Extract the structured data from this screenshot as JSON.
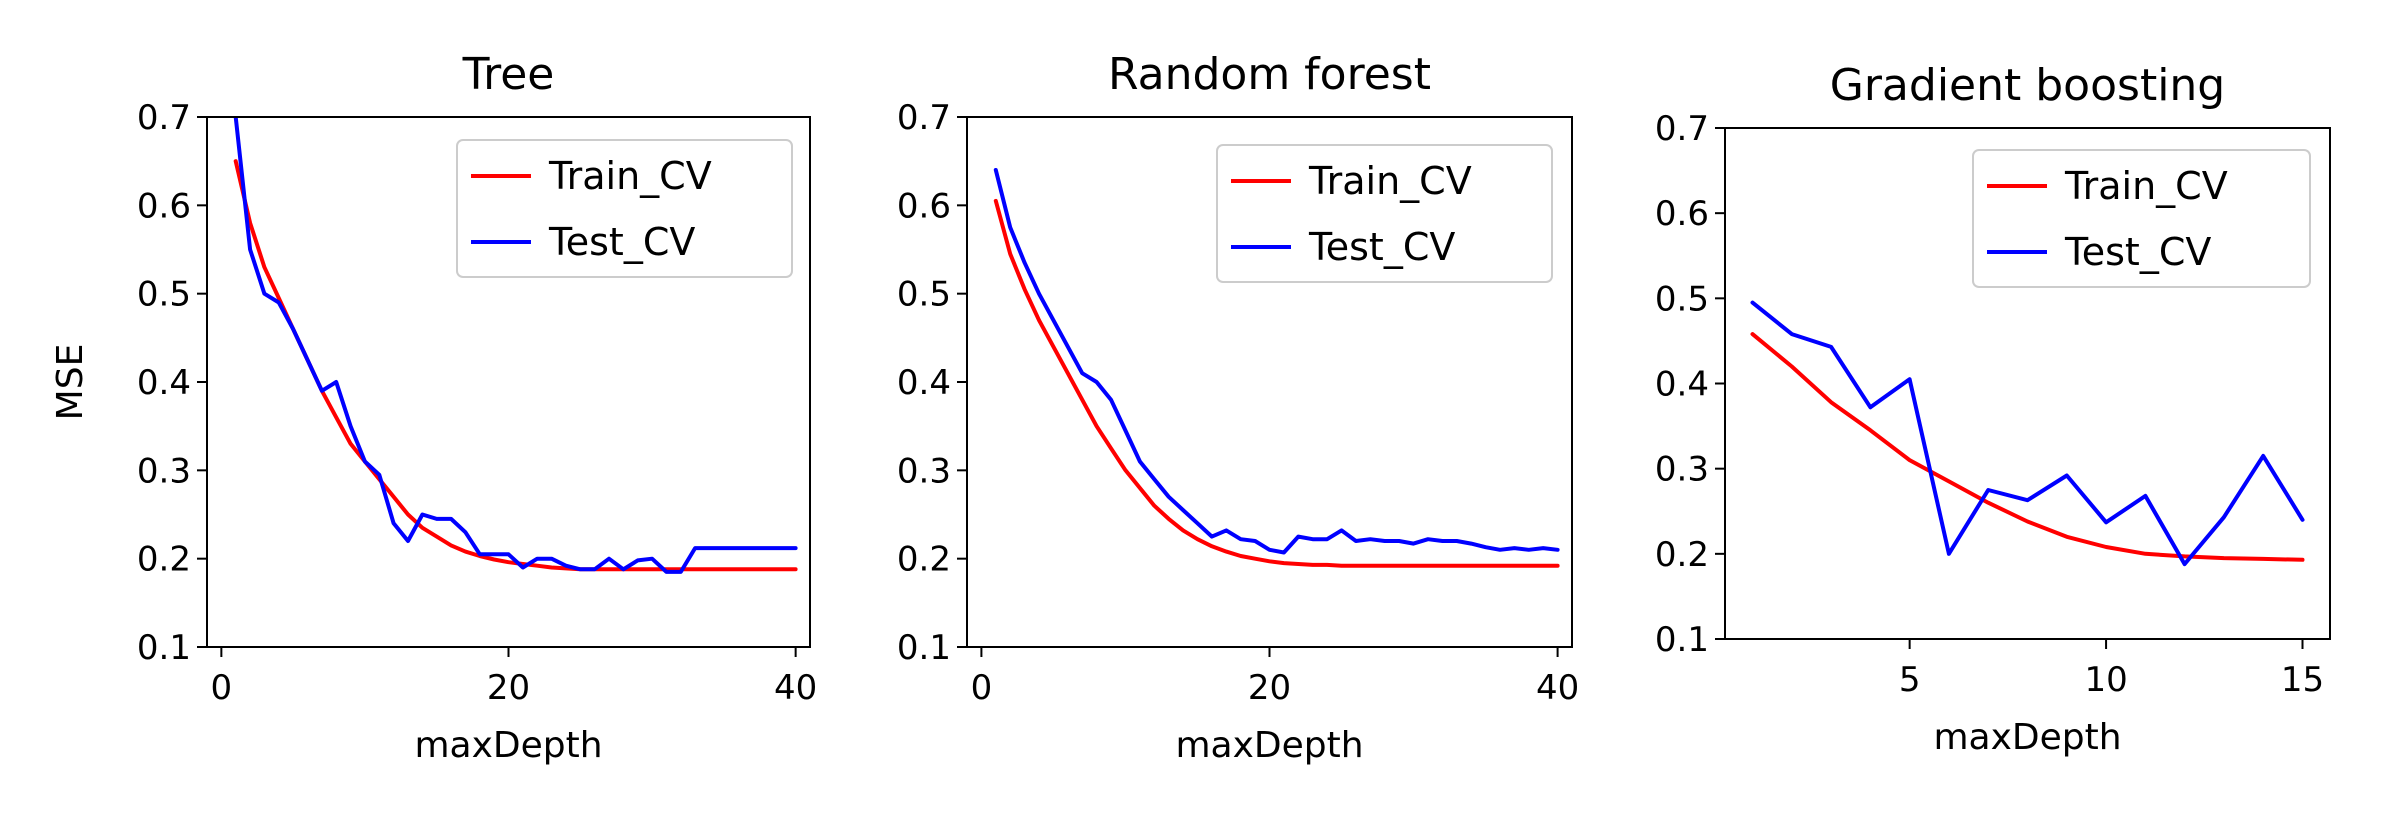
{
  "chart_data": [
    {
      "type": "line",
      "title": "Tree",
      "xlabel": "maxDepth",
      "ylabel": "MSE",
      "xlim": [
        -1,
        41
      ],
      "ylim": [
        0.1,
        0.7
      ],
      "xticks": [
        0,
        20,
        40
      ],
      "yticks": [
        0.1,
        0.2,
        0.3,
        0.4,
        0.5,
        0.6,
        0.7
      ],
      "legend": "top-right",
      "series": [
        {
          "name": "Train_CV",
          "color": "#ff0000",
          "x": [
            1,
            2,
            3,
            4,
            5,
            6,
            7,
            8,
            9,
            10,
            11,
            12,
            13,
            14,
            15,
            16,
            17,
            18,
            19,
            20,
            21,
            22,
            23,
            24,
            25,
            26,
            27,
            28,
            29,
            30,
            31,
            32,
            33,
            34,
            35,
            36,
            37,
            38,
            39,
            40
          ],
          "y": [
            0.65,
            0.58,
            0.53,
            0.495,
            0.46,
            0.425,
            0.39,
            0.36,
            0.33,
            0.31,
            0.29,
            0.27,
            0.25,
            0.235,
            0.225,
            0.215,
            0.208,
            0.203,
            0.199,
            0.196,
            0.194,
            0.192,
            0.19,
            0.189,
            0.188,
            0.188,
            0.188,
            0.188,
            0.188,
            0.188,
            0.188,
            0.188,
            0.188,
            0.188,
            0.188,
            0.188,
            0.188,
            0.188,
            0.188,
            0.188
          ]
        },
        {
          "name": "Test_CV",
          "color": "#0000ff",
          "x": [
            1,
            2,
            3,
            4,
            5,
            6,
            7,
            8,
            9,
            10,
            11,
            12,
            13,
            14,
            15,
            16,
            17,
            18,
            19,
            20,
            21,
            22,
            23,
            24,
            25,
            26,
            27,
            28,
            29,
            30,
            31,
            32,
            33,
            34,
            35,
            36,
            37,
            38,
            39,
            40
          ],
          "y": [
            0.7,
            0.55,
            0.5,
            0.49,
            0.46,
            0.425,
            0.39,
            0.4,
            0.35,
            0.31,
            0.295,
            0.24,
            0.22,
            0.25,
            0.245,
            0.245,
            0.23,
            0.205,
            0.205,
            0.205,
            0.19,
            0.2,
            0.2,
            0.192,
            0.188,
            0.188,
            0.2,
            0.188,
            0.198,
            0.2,
            0.185,
            0.185,
            0.212,
            0.212,
            0.212,
            0.212,
            0.212,
            0.212,
            0.212,
            0.212
          ]
        }
      ]
    },
    {
      "type": "line",
      "title": "Random forest",
      "xlabel": "maxDepth",
      "ylabel": "",
      "xlim": [
        -1,
        41
      ],
      "ylim": [
        0.1,
        0.7
      ],
      "xticks": [
        0,
        20,
        40
      ],
      "yticks": [
        0.1,
        0.2,
        0.3,
        0.4,
        0.5,
        0.6,
        0.7
      ],
      "legend": "top-right",
      "series": [
        {
          "name": "Train_CV",
          "color": "#ff0000",
          "x": [
            1,
            2,
            3,
            4,
            5,
            6,
            7,
            8,
            9,
            10,
            11,
            12,
            13,
            14,
            15,
            16,
            17,
            18,
            19,
            20,
            21,
            22,
            23,
            24,
            25,
            26,
            27,
            28,
            29,
            30,
            31,
            32,
            33,
            34,
            35,
            36,
            37,
            38,
            39,
            40
          ],
          "y": [
            0.605,
            0.545,
            0.505,
            0.47,
            0.44,
            0.41,
            0.38,
            0.35,
            0.325,
            0.3,
            0.28,
            0.26,
            0.245,
            0.232,
            0.222,
            0.214,
            0.208,
            0.203,
            0.2,
            0.197,
            0.195,
            0.194,
            0.193,
            0.193,
            0.192,
            0.192,
            0.192,
            0.192,
            0.192,
            0.192,
            0.192,
            0.192,
            0.192,
            0.192,
            0.192,
            0.192,
            0.192,
            0.192,
            0.192,
            0.192
          ]
        },
        {
          "name": "Test_CV",
          "color": "#0000ff",
          "x": [
            1,
            2,
            3,
            4,
            5,
            6,
            7,
            8,
            9,
            10,
            11,
            12,
            13,
            14,
            15,
            16,
            17,
            18,
            19,
            20,
            21,
            22,
            23,
            24,
            25,
            26,
            27,
            28,
            29,
            30,
            31,
            32,
            33,
            34,
            35,
            36,
            37,
            38,
            39,
            40
          ],
          "y": [
            0.64,
            0.575,
            0.535,
            0.5,
            0.47,
            0.44,
            0.41,
            0.4,
            0.38,
            0.345,
            0.31,
            0.29,
            0.27,
            0.255,
            0.24,
            0.225,
            0.232,
            0.222,
            0.22,
            0.21,
            0.207,
            0.225,
            0.222,
            0.222,
            0.232,
            0.22,
            0.222,
            0.22,
            0.22,
            0.217,
            0.222,
            0.22,
            0.22,
            0.217,
            0.213,
            0.21,
            0.212,
            0.21,
            0.212,
            0.21
          ]
        }
      ]
    },
    {
      "type": "line",
      "title": "Gradient boosting",
      "xlabel": "maxDepth",
      "ylabel": "",
      "xlim": [
        0.3,
        15.7
      ],
      "ylim": [
        0.1,
        0.7
      ],
      "xticks": [
        5,
        10,
        15
      ],
      "yticks": [
        0.1,
        0.2,
        0.3,
        0.4,
        0.5,
        0.6,
        0.7
      ],
      "legend": "top-right",
      "series": [
        {
          "name": "Train_CV",
          "color": "#ff0000",
          "x": [
            1,
            2,
            3,
            4,
            5,
            6,
            7,
            8,
            9,
            10,
            11,
            12,
            13,
            14,
            15
          ],
          "y": [
            0.458,
            0.42,
            0.378,
            0.345,
            0.31,
            0.285,
            0.26,
            0.238,
            0.22,
            0.208,
            0.2,
            0.197,
            0.195,
            0.194,
            0.193
          ]
        },
        {
          "name": "Test_CV",
          "color": "#0000ff",
          "x": [
            1,
            2,
            3,
            4,
            5,
            6,
            7,
            8,
            9,
            10,
            11,
            12,
            13,
            14,
            15
          ],
          "y": [
            0.495,
            0.458,
            0.443,
            0.372,
            0.405,
            0.2,
            0.275,
            0.263,
            0.292,
            0.237,
            0.268,
            0.188,
            0.243,
            0.315,
            0.24
          ]
        }
      ]
    }
  ]
}
